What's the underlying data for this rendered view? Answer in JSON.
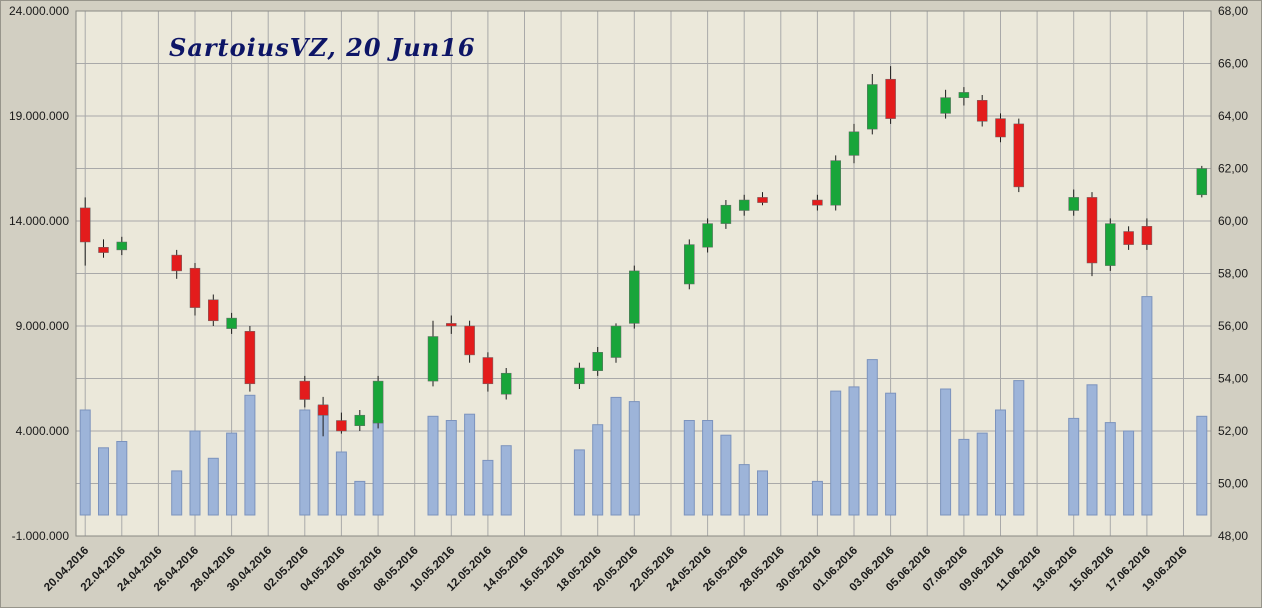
{
  "title": "SartoiusVZ, 20 Jun16",
  "colors": {
    "background": "#d2cfc2",
    "plot_background": "#ebe8da",
    "grid": "#a9a9a9",
    "plot_border": "#8a8a84",
    "up": "#18a53a",
    "down": "#e31c1c",
    "wick": "#1c1c1c",
    "body_border": "#666666",
    "volume": "#9db4d9",
    "volume_border": "#7c93bd",
    "title": "#0d1566",
    "axis_text": "#1a1a1a"
  },
  "chart_data": {
    "type": "candlestick",
    "title": "SartoiusVZ, 20 Jun16",
    "legend": "none",
    "grid": "on",
    "left_axis": {
      "role": "volume",
      "min": -1000000,
      "max": 24000000,
      "ticks": [
        "24.000.000",
        "19.000.000",
        "14.000.000",
        "9.000.000",
        "4.000.000",
        "-1.000.000"
      ]
    },
    "right_axis": {
      "role": "price",
      "min": 48,
      "max": 68,
      "ticks": [
        "68,00",
        "66,00",
        "64,00",
        "62,00",
        "60,00",
        "58,00",
        "56,00",
        "54,00",
        "52,00",
        "50,00",
        "48,00"
      ]
    },
    "x_axis": {
      "tick_labels": [
        "20.04.2016",
        "22.04.2016",
        "24.04.2016",
        "26.04.2016",
        "28.04.2016",
        "30.04.2016",
        "02.05.2016",
        "04.05.2016",
        "06.05.2016",
        "08.05.2016",
        "10.05.2016",
        "12.05.2016",
        "14.05.2016",
        "16.05.2016",
        "18.05.2016",
        "20.05.2016",
        "22.05.2016",
        "24.05.2016",
        "26.05.2016",
        "28.05.2016",
        "30.05.2016",
        "01.06.2016",
        "03.06.2016",
        "05.06.2016",
        "07.06.2016",
        "09.06.2016",
        "11.06.2016",
        "13.06.2016",
        "15.06.2016",
        "17.06.2016",
        "19.06.2016"
      ]
    },
    "series": [
      {
        "date": "20.04.2016",
        "open": 60.5,
        "high": 60.9,
        "low": 58.3,
        "close": 59.2,
        "volume": 5000000
      },
      {
        "date": "21.04.2016",
        "open": 59.0,
        "high": 59.3,
        "low": 58.6,
        "close": 58.8,
        "volume": 3200000
      },
      {
        "date": "22.04.2016",
        "open": 58.9,
        "high": 59.4,
        "low": 58.7,
        "close": 59.2,
        "volume": 3500000
      },
      {
        "date": "25.04.2016",
        "open": 58.7,
        "high": 58.9,
        "low": 57.8,
        "close": 58.1,
        "volume": 2100000
      },
      {
        "date": "26.04.2016",
        "open": 58.2,
        "high": 58.4,
        "low": 56.4,
        "close": 56.7,
        "volume": 4000000
      },
      {
        "date": "27.04.2016",
        "open": 57.0,
        "high": 57.2,
        "low": 56.0,
        "close": 56.2,
        "volume": 2700000
      },
      {
        "date": "28.04.2016",
        "open": 55.9,
        "high": 56.5,
        "low": 55.7,
        "close": 56.3,
        "volume": 3900000
      },
      {
        "date": "29.04.2016",
        "open": 55.8,
        "high": 56.0,
        "low": 53.5,
        "close": 53.8,
        "volume": 5700000
      },
      {
        "date": "02.05.2016",
        "open": 53.9,
        "high": 54.1,
        "low": 52.9,
        "close": 53.2,
        "volume": 5000000
      },
      {
        "date": "03.05.2016",
        "open": 53.0,
        "high": 53.3,
        "low": 51.8,
        "close": 52.6,
        "volume": 5200000
      },
      {
        "date": "04.05.2016",
        "open": 52.4,
        "high": 52.7,
        "low": 51.9,
        "close": 52.0,
        "volume": 3000000
      },
      {
        "date": "05.05.2016",
        "open": 52.2,
        "high": 52.8,
        "low": 52.0,
        "close": 52.6,
        "volume": 1600000
      },
      {
        "date": "06.05.2016",
        "open": 52.3,
        "high": 54.1,
        "low": 52.1,
        "close": 53.9,
        "volume": 4500000
      },
      {
        "date": "09.05.2016",
        "open": 53.9,
        "high": 56.2,
        "low": 53.7,
        "close": 55.6,
        "volume": 4700000
      },
      {
        "date": "10.05.2016",
        "open": 56.1,
        "high": 56.4,
        "low": 55.7,
        "close": 56.0,
        "volume": 4500000
      },
      {
        "date": "11.05.2016",
        "open": 56.0,
        "high": 56.2,
        "low": 54.6,
        "close": 54.9,
        "volume": 4800000
      },
      {
        "date": "12.05.2016",
        "open": 54.8,
        "high": 55.0,
        "low": 53.5,
        "close": 53.8,
        "volume": 2600000
      },
      {
        "date": "13.05.2016",
        "open": 53.4,
        "high": 54.4,
        "low": 53.2,
        "close": 54.2,
        "volume": 3300000
      },
      {
        "date": "17.05.2016",
        "open": 53.8,
        "high": 54.6,
        "low": 53.6,
        "close": 54.4,
        "volume": 3100000
      },
      {
        "date": "18.05.2016",
        "open": 54.3,
        "high": 55.2,
        "low": 54.1,
        "close": 55.0,
        "volume": 4300000
      },
      {
        "date": "19.05.2016",
        "open": 54.8,
        "high": 56.1,
        "low": 54.6,
        "close": 56.0,
        "volume": 5600000
      },
      {
        "date": "20.05.2016",
        "open": 56.1,
        "high": 58.3,
        "low": 55.9,
        "close": 58.1,
        "volume": 5400000
      },
      {
        "date": "23.05.2016",
        "open": 57.6,
        "high": 59.3,
        "low": 57.4,
        "close": 59.1,
        "volume": 4500000
      },
      {
        "date": "24.05.2016",
        "open": 59.0,
        "high": 60.1,
        "low": 58.8,
        "close": 59.9,
        "volume": 4500000
      },
      {
        "date": "25.05.2016",
        "open": 59.9,
        "high": 60.8,
        "low": 59.7,
        "close": 60.6,
        "volume": 3800000
      },
      {
        "date": "26.05.2016",
        "open": 60.4,
        "high": 61.0,
        "low": 60.2,
        "close": 60.8,
        "volume": 2400000
      },
      {
        "date": "27.05.2016",
        "open": 60.9,
        "high": 61.1,
        "low": 60.6,
        "close": 60.7,
        "volume": 2100000
      },
      {
        "date": "30.05.2016",
        "open": 60.8,
        "high": 61.0,
        "low": 60.4,
        "close": 60.6,
        "volume": 1600000
      },
      {
        "date": "31.05.2016",
        "open": 60.6,
        "high": 62.5,
        "low": 60.4,
        "close": 62.3,
        "volume": 5900000
      },
      {
        "date": "01.06.2016",
        "open": 62.5,
        "high": 63.7,
        "low": 62.2,
        "close": 63.4,
        "volume": 6100000
      },
      {
        "date": "02.06.2016",
        "open": 63.5,
        "high": 65.6,
        "low": 63.3,
        "close": 65.2,
        "volume": 7400000
      },
      {
        "date": "03.06.2016",
        "open": 65.4,
        "high": 65.9,
        "low": 63.7,
        "close": 63.9,
        "volume": 5800000
      },
      {
        "date": "06.06.2016",
        "open": 64.1,
        "high": 65.0,
        "low": 63.9,
        "close": 64.7,
        "volume": 6000000
      },
      {
        "date": "07.06.2016",
        "open": 64.7,
        "high": 65.1,
        "low": 64.4,
        "close": 64.9,
        "volume": 3600000
      },
      {
        "date": "08.06.2016",
        "open": 64.6,
        "high": 64.8,
        "low": 63.6,
        "close": 63.8,
        "volume": 3900000
      },
      {
        "date": "09.06.2016",
        "open": 63.9,
        "high": 64.1,
        "low": 63.0,
        "close": 63.2,
        "volume": 5000000
      },
      {
        "date": "10.06.2016",
        "open": 63.7,
        "high": 63.9,
        "low": 61.1,
        "close": 61.3,
        "volume": 6400000
      },
      {
        "date": "13.06.2016",
        "open": 60.4,
        "high": 61.2,
        "low": 60.2,
        "close": 60.9,
        "volume": 4600000
      },
      {
        "date": "14.06.2016",
        "open": 60.9,
        "high": 61.1,
        "low": 57.9,
        "close": 58.4,
        "volume": 6200000
      },
      {
        "date": "15.06.2016",
        "open": 58.3,
        "high": 60.1,
        "low": 58.1,
        "close": 59.9,
        "volume": 4400000
      },
      {
        "date": "16.06.2016",
        "open": 59.6,
        "high": 59.8,
        "low": 58.9,
        "close": 59.1,
        "volume": 4000000
      },
      {
        "date": "17.06.2016",
        "open": 59.8,
        "high": 60.1,
        "low": 58.9,
        "close": 59.1,
        "volume": 10400000
      },
      {
        "date": "20.06.2016",
        "open": 61.0,
        "high": 62.1,
        "low": 60.9,
        "close": 62.0,
        "volume": 4700000
      }
    ]
  }
}
